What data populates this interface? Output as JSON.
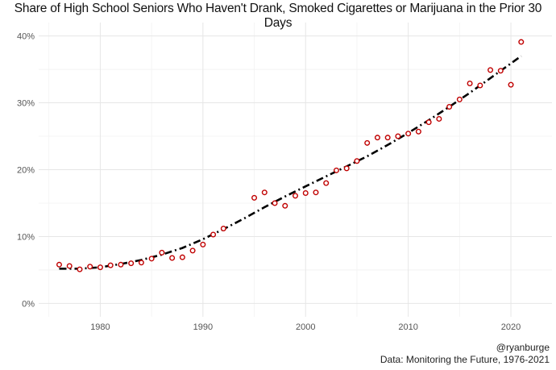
{
  "chart_data": {
    "type": "scatter",
    "title": "Share of High School Seniors Who Haven't Drank, Smoked Cigarettes or Marijuana in the Prior 30 Days",
    "xlabel": "",
    "ylabel": "",
    "xlim": [
      1974,
      2024
    ],
    "ylim": [
      -2,
      42
    ],
    "x_ticks": [
      1980,
      1990,
      2000,
      2010,
      2020
    ],
    "y_ticks": [
      0,
      10,
      20,
      30,
      40
    ],
    "y_tick_labels": [
      "0%",
      "10%",
      "20%",
      "30%",
      "40%"
    ],
    "grid": true,
    "legend": "none",
    "series": [
      {
        "kind": "points",
        "color": "#c00000",
        "x": [
          1976,
          1977,
          1978,
          1979,
          1980,
          1981,
          1982,
          1983,
          1984,
          1985,
          1986,
          1987,
          1988,
          1989,
          1990,
          1991,
          1992,
          1995,
          1996,
          1997,
          1998,
          1999,
          2000,
          2001,
          2002,
          2003,
          2004,
          2005,
          2006,
          2007,
          2008,
          2009,
          2010,
          2011,
          2012,
          2013,
          2014,
          2015,
          2016,
          2017,
          2018,
          2019,
          2020,
          2021
        ],
        "y": [
          5.8,
          5.6,
          5.1,
          5.5,
          5.4,
          5.7,
          5.8,
          6.0,
          6.1,
          6.7,
          7.6,
          6.8,
          6.9,
          7.9,
          8.8,
          10.3,
          11.2,
          15.8,
          16.6,
          15.0,
          14.6,
          16.1,
          16.5,
          16.6,
          18.0,
          19.9,
          20.2,
          21.3,
          24.0,
          24.8,
          24.8,
          25.0,
          25.4,
          25.7,
          27.1,
          27.6,
          29.4,
          30.5,
          32.9,
          32.6,
          34.9,
          34.8,
          32.7,
          39.1
        ]
      },
      {
        "kind": "trend",
        "color": "#000000",
        "x": [
          1976,
          1978,
          1980,
          1982,
          1984,
          1986,
          1988,
          1990,
          1992,
          1994,
          1996,
          1998,
          2000,
          2002,
          2004,
          2006,
          2008,
          2010,
          2012,
          2014,
          2016,
          2018,
          2021
        ],
        "y": [
          5.2,
          5.2,
          5.4,
          5.9,
          6.5,
          7.3,
          8.3,
          9.6,
          11.1,
          12.7,
          14.4,
          16.0,
          17.5,
          19.0,
          20.5,
          22.0,
          23.7,
          25.5,
          27.4,
          29.4,
          31.5,
          33.7,
          37.0
        ]
      }
    ]
  },
  "caption": {
    "handle": "@ryanburge",
    "source": "Data: Monitoring the Future, 1976-2021"
  }
}
